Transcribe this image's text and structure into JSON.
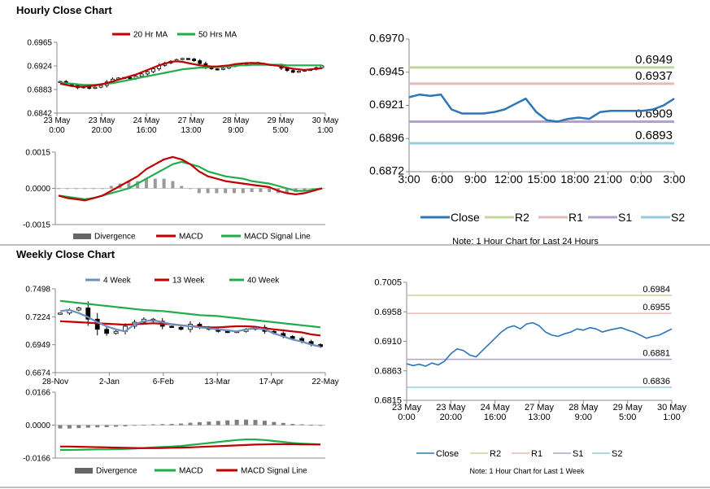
{
  "colors": {
    "red": "#c00000",
    "green": "#1fad4b",
    "blue": "#2e75b6",
    "steel": "#6e8ebf",
    "r2": "#c3d69b",
    "r1": "#e6b9b8",
    "s1": "#b3a2c7",
    "s2": "#93cddd",
    "grey": "#666666",
    "axis": "#888888"
  },
  "sections": {
    "hourly_title": "Hourly Close Chart",
    "weekly_title": "Weekly Close Chart"
  },
  "chart_data": [
    {
      "id": "hourly_price",
      "type": "line",
      "title": "Hourly Close Chart",
      "ylim": [
        0.6842,
        0.6965
      ],
      "yticks": [
        "0.6965",
        "0.6924",
        "0.6883",
        "0.6842"
      ],
      "xticks": [
        [
          "23 May",
          "0:00"
        ],
        [
          "23 May",
          "20:00"
        ],
        [
          "24 May",
          "16:00"
        ],
        [
          "27 May",
          "13:00"
        ],
        [
          "28 May",
          "9:00"
        ],
        [
          "29 May",
          "5:00"
        ],
        [
          "30 May",
          "1:00"
        ]
      ],
      "legend": [
        "20 Hr MA",
        "50 Hrs MA"
      ],
      "series": [
        {
          "name": "Price (candles)",
          "values": [
            0.6897,
            0.6893,
            0.689,
            0.6886,
            0.6888,
            0.6885,
            0.6887,
            0.689,
            0.6896,
            0.6901,
            0.6903,
            0.6904,
            0.6902,
            0.6906,
            0.691,
            0.6914,
            0.6919,
            0.6925,
            0.6929,
            0.6932,
            0.6935,
            0.6937,
            0.6936,
            0.6933,
            0.6928,
            0.6922,
            0.6919,
            0.6918,
            0.692,
            0.6923,
            0.6925,
            0.6927,
            0.6929,
            0.693,
            0.6928,
            0.6927,
            0.6926,
            0.6925,
            0.692,
            0.6916,
            0.6913,
            0.6915,
            0.6917,
            0.6918,
            0.6921,
            0.6924
          ]
        },
        {
          "name": "20 Hr MA",
          "values": [
            0.6893,
            0.6891,
            0.6889,
            0.6888,
            0.6888,
            0.6889,
            0.689,
            0.6892,
            0.6894,
            0.6897,
            0.69,
            0.6903,
            0.6906,
            0.6909,
            0.6913,
            0.6917,
            0.6921,
            0.6925,
            0.6928,
            0.6931,
            0.6932,
            0.6931,
            0.6929,
            0.6927,
            0.6925,
            0.6924,
            0.6923,
            0.6923,
            0.6924,
            0.6925,
            0.6927,
            0.6928,
            0.6929,
            0.6929,
            0.6929,
            0.6928,
            0.6926,
            0.6925,
            0.6923,
            0.6921,
            0.6919,
            0.6918,
            0.6917,
            0.6918,
            0.6919,
            0.692
          ]
        },
        {
          "name": "50 Hrs MA",
          "values": [
            0.6895,
            0.6894,
            0.6893,
            0.6892,
            0.6891,
            0.6891,
            0.6891,
            0.6892,
            0.6893,
            0.6894,
            0.6896,
            0.6898,
            0.69,
            0.6902,
            0.6904,
            0.6906,
            0.6908,
            0.691,
            0.6912,
            0.6914,
            0.6916,
            0.6918,
            0.6919,
            0.692,
            0.6921,
            0.6921,
            0.6922,
            0.6922,
            0.6923,
            0.6923,
            0.6924,
            0.6925,
            0.6925,
            0.6926,
            0.6926,
            0.6926,
            0.6926,
            0.6926,
            0.6926,
            0.6925,
            0.6925,
            0.6925,
            0.6925,
            0.6925,
            0.6925,
            0.6925
          ]
        }
      ]
    },
    {
      "id": "hourly_macd",
      "type": "line",
      "ylim": [
        -0.0015,
        0.0015
      ],
      "yticks": [
        "0.0015",
        "0.0000",
        "-0.0015"
      ],
      "legend": [
        "Divergence",
        "MACD",
        "MACD Signal Line"
      ],
      "series": [
        {
          "name": "MACD",
          "values": [
            -0.0003,
            -0.0004,
            -0.00045,
            -0.0005,
            -0.0004,
            -0.0003,
            -0.0001,
            0.0001,
            0.0003,
            0.0005,
            0.0008,
            0.001,
            0.0012,
            0.0013,
            0.0012,
            0.001,
            0.0007,
            0.0005,
            0.0004,
            0.0003,
            0.00025,
            0.0002,
            0.00015,
            0.0001,
            5e-05,
            -0.0001,
            -0.0002,
            -0.00025,
            -0.0002,
            -0.0001,
            0.0
          ]
        },
        {
          "name": "MACD Signal Line",
          "values": [
            -0.0003,
            -0.00035,
            -0.0004,
            -0.00045,
            -0.0004,
            -0.0003,
            -0.0002,
            -0.0001,
            0.0,
            0.0002,
            0.0004,
            0.0006,
            0.0008,
            0.001,
            0.0011,
            0.001,
            0.0009,
            0.0007,
            0.0006,
            0.0005,
            0.00045,
            0.0004,
            0.0003,
            0.00025,
            0.0002,
            0.0001,
            0.0,
            -0.0001,
            -0.0001,
            -5e-05,
            0.0
          ]
        },
        {
          "name": "Divergence",
          "values": [
            0.0,
            0.0,
            0.0,
            0.0,
            0.0,
            0.0,
            0.0001,
            0.0002,
            0.0003,
            0.0003,
            0.0004,
            0.0004,
            0.0004,
            0.0003,
            0.0001,
            0.0,
            -0.0002,
            -0.0002,
            -0.0002,
            -0.0002,
            -0.0002,
            -0.0002,
            -0.00015,
            -0.00015,
            -0.00015,
            -0.0002,
            -0.0002,
            -0.00015,
            -0.0001,
            -5e-05,
            0.0
          ]
        }
      ]
    },
    {
      "id": "hourly_24h",
      "type": "line",
      "note": "Note: 1 Hour Chart for Last 24 Hours",
      "ylim": [
        0.6872,
        0.697
      ],
      "yticks": [
        "0.6970",
        "0.6945",
        "0.6921",
        "0.6896",
        "0.6872"
      ],
      "xticks": [
        "3:00",
        "6:00",
        "9:00",
        "12:00",
        "15:00",
        "18:00",
        "21:00",
        "0:00",
        "3:00"
      ],
      "legend": [
        "Close",
        "R2",
        "R1",
        "S1",
        "S2"
      ],
      "levels": [
        {
          "name": "R2",
          "value": 0.6949,
          "label": "0.6949"
        },
        {
          "name": "R1",
          "value": 0.6937,
          "label": "0.6937"
        },
        {
          "name": "S1",
          "value": 0.6909,
          "label": "0.6909"
        },
        {
          "name": "S2",
          "value": 0.6893,
          "label": "0.6893"
        }
      ],
      "series": [
        {
          "name": "Close",
          "values": [
            0.6927,
            0.6929,
            0.6928,
            0.6929,
            0.6918,
            0.6915,
            0.6915,
            0.6915,
            0.6916,
            0.6918,
            0.6922,
            0.6926,
            0.6916,
            0.691,
            0.6909,
            0.6911,
            0.6912,
            0.6911,
            0.6916,
            0.6917,
            0.6917,
            0.6917,
            0.6917,
            0.6918,
            0.6921,
            0.6926
          ]
        }
      ]
    },
    {
      "id": "weekly_price",
      "type": "line",
      "title": "Weekly Close Chart",
      "ylim": [
        0.6674,
        0.7498
      ],
      "yticks": [
        "0.7498",
        "0.7224",
        "0.6949",
        "0.6674"
      ],
      "xticks": [
        "28-Nov",
        "2-Jan",
        "6-Feb",
        "13-Mar",
        "17-Apr",
        "22-May"
      ],
      "legend": [
        "4 Week",
        "13 Week",
        "40 Week"
      ],
      "series": [
        {
          "name": "Weekly Close (candles)",
          "values": [
            0.726,
            0.729,
            0.731,
            0.72,
            0.71,
            0.706,
            0.708,
            0.713,
            0.717,
            0.72,
            0.718,
            0.713,
            0.712,
            0.71,
            0.715,
            0.712,
            0.71,
            0.708,
            0.707,
            0.708,
            0.71,
            0.712,
            0.708,
            0.706,
            0.703,
            0.701,
            0.698,
            0.695,
            0.693
          ]
        },
        {
          "name": "4 Week",
          "values": [
            0.728,
            0.729,
            0.726,
            0.722,
            0.717,
            0.713,
            0.71,
            0.708,
            0.715,
            0.718,
            0.719,
            0.717,
            0.715,
            0.714,
            0.713,
            0.712,
            0.711,
            0.71,
            0.709,
            0.708,
            0.71,
            0.711,
            0.71,
            0.706,
            0.703,
            0.7,
            0.698,
            0.695,
            0.693
          ]
        },
        {
          "name": "13 Week",
          "values": [
            0.718,
            0.7175,
            0.717,
            0.7165,
            0.716,
            0.7155,
            0.715,
            0.7145,
            0.715,
            0.7155,
            0.716,
            0.7155,
            0.715,
            0.714,
            0.713,
            0.7125,
            0.712,
            0.712,
            0.7125,
            0.713,
            0.713,
            0.7125,
            0.711,
            0.71,
            0.709,
            0.708,
            0.707,
            0.705,
            0.704
          ]
        },
        {
          "name": "40 Week",
          "values": [
            0.738,
            0.737,
            0.736,
            0.735,
            0.734,
            0.733,
            0.732,
            0.731,
            0.73,
            0.729,
            0.7285,
            0.728,
            0.727,
            0.726,
            0.725,
            0.724,
            0.7235,
            0.723,
            0.722,
            0.721,
            0.72,
            0.719,
            0.718,
            0.717,
            0.716,
            0.715,
            0.714,
            0.713,
            0.712
          ]
        }
      ]
    },
    {
      "id": "weekly_macd",
      "type": "line",
      "ylim": [
        -0.0166,
        0.0166
      ],
      "yticks": [
        "0.0166",
        "0.0000",
        "-0.0166"
      ],
      "legend": [
        "Divergence",
        "MACD",
        "MACD Signal Line"
      ],
      "series": [
        {
          "name": "MACD",
          "values": [
            -0.0125,
            -0.0125,
            -0.0124,
            -0.0123,
            -0.0122,
            -0.0122,
            -0.0121,
            -0.012,
            -0.0118,
            -0.0115,
            -0.0112,
            -0.011,
            -0.0108,
            -0.0105,
            -0.01,
            -0.0095,
            -0.009,
            -0.0085,
            -0.008,
            -0.0075,
            -0.0072,
            -0.0072,
            -0.0075,
            -0.008,
            -0.0085,
            -0.009,
            -0.0093,
            -0.0095,
            -0.0098
          ]
        },
        {
          "name": "MACD Signal Line",
          "values": [
            -0.0108,
            -0.0108,
            -0.0109,
            -0.011,
            -0.0111,
            -0.0112,
            -0.0113,
            -0.0114,
            -0.0115,
            -0.0116,
            -0.0116,
            -0.0115,
            -0.0114,
            -0.0113,
            -0.0112,
            -0.011,
            -0.0108,
            -0.0106,
            -0.0104,
            -0.0102,
            -0.01,
            -0.0098,
            -0.0097,
            -0.0096,
            -0.0096,
            -0.0096,
            -0.0097,
            -0.0097,
            -0.0098
          ]
        },
        {
          "name": "Divergence",
          "values": [
            -0.0017,
            -0.0017,
            -0.0015,
            -0.0013,
            -0.0011,
            -0.001,
            -0.0008,
            -0.0006,
            -0.0003,
            0.0001,
            0.0004,
            0.0005,
            0.0006,
            0.0008,
            0.0012,
            0.0015,
            0.0018,
            0.0021,
            0.0024,
            0.0027,
            0.0028,
            0.0026,
            0.0022,
            0.0016,
            0.0011,
            0.0006,
            0.0004,
            0.0002,
            0.0
          ]
        }
      ]
    },
    {
      "id": "weekly_week",
      "type": "line",
      "note": "Note: 1 Hour Chart for Last 1 Week",
      "ylim": [
        0.6815,
        0.7005
      ],
      "yticks": [
        "0.7005",
        "0.6958",
        "0.6910",
        "0.6863",
        "0.6815"
      ],
      "xticks": [
        [
          "23 May",
          "0:00"
        ],
        [
          "23 May",
          "20:00"
        ],
        [
          "24 May",
          "16:00"
        ],
        [
          "27 May",
          "13:00"
        ],
        [
          "28 May",
          "9:00"
        ],
        [
          "29 May",
          "5:00"
        ],
        [
          "30 May",
          "1:00"
        ]
      ],
      "legend": [
        "Close",
        "R2",
        "R1",
        "S1",
        "S2"
      ],
      "levels": [
        {
          "name": "R2",
          "value": 0.6984,
          "label": "0.6984"
        },
        {
          "name": "R1",
          "value": 0.6955,
          "label": "0.6955"
        },
        {
          "name": "S1",
          "value": 0.6881,
          "label": "0.6881"
        },
        {
          "name": "S2",
          "value": 0.6836,
          "label": "0.6836"
        }
      ],
      "series": [
        {
          "name": "Close",
          "values": [
            0.6874,
            0.6871,
            0.6873,
            0.687,
            0.6875,
            0.6872,
            0.6878,
            0.689,
            0.6898,
            0.6895,
            0.6888,
            0.6885,
            0.6895,
            0.6905,
            0.6915,
            0.6925,
            0.6932,
            0.6935,
            0.693,
            0.6938,
            0.694,
            0.6935,
            0.6925,
            0.692,
            0.6918,
            0.6922,
            0.6925,
            0.693,
            0.6928,
            0.6932,
            0.693,
            0.6925,
            0.6928,
            0.693,
            0.6932,
            0.6928,
            0.6925,
            0.692,
            0.6915,
            0.6918,
            0.692,
            0.6925,
            0.693
          ]
        }
      ]
    }
  ]
}
